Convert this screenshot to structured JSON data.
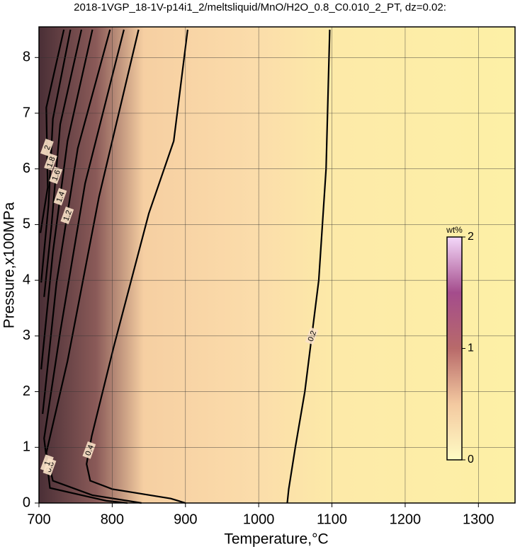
{
  "chart_data": {
    "type": "contour",
    "title": "2018-1VGP_18-1V-p14i1_2/meltsliquid/MnO/H2O_0.8_C0.010_2_PT, dz=0.02:",
    "x_label": "Temperature,°C",
    "y_label": "Pressure,x100MPa",
    "xlim": [
      700,
      1350
    ],
    "ylim": [
      0,
      8.55
    ],
    "xticks": [
      700,
      800,
      900,
      1000,
      1100,
      1200,
      1300
    ],
    "yticks": [
      0,
      1,
      2,
      3,
      4,
      5,
      6,
      7,
      8
    ],
    "grid": true,
    "line_color": "#000000",
    "colorbar": {
      "label": "wt%",
      "lim": [
        0,
        2
      ],
      "ticks": [
        0,
        1,
        2
      ],
      "colors": [
        "#fffbc4",
        "#f3c9a0",
        "#b86a6a",
        "#a44c8c",
        "#f4d8fa"
      ]
    },
    "contours": [
      {
        "level": 0.2,
        "x": [
          1039,
          1041,
          1050,
          1063,
          1082,
          1092,
          1097
        ],
        "y": [
          0,
          0.25,
          1.0,
          2,
          4,
          6,
          8.5
        ]
      },
      {
        "level": 0.4,
        "x": [
          903,
          884,
          850,
          802,
          772,
          765,
          770,
          800,
          880,
          900
        ],
        "y": [
          8.5,
          6.5,
          5.2,
          2.8,
          1.2,
          0.7,
          0.4,
          0.25,
          0.08,
          0
        ]
      },
      {
        "level": 0.8,
        "x": [
          836,
          782,
          739,
          710,
          719,
          773,
          840
        ],
        "y": [
          8.5,
          5.5,
          2.55,
          0.9,
          0.4,
          0.14,
          0
        ]
      },
      {
        "level": 1,
        "x": [
          816,
          763,
          729,
          707,
          715,
          792,
          821
        ],
        "y": [
          8.5,
          5.74,
          3.07,
          1.16,
          0.27,
          0.04,
          0
        ]
      },
      {
        "level": 1.2,
        "x": [
          797,
          753,
          724,
          705
        ],
        "y": [
          8.5,
          6.37,
          3.96,
          1.6
        ]
      },
      {
        "level": 1.4,
        "x": [
          773,
          739,
          719,
          703
        ],
        "y": [
          8.5,
          6.5,
          4.5,
          2.4
        ]
      },
      {
        "level": 1.6,
        "x": [
          758,
          729,
          717,
          707
        ],
        "y": [
          8.5,
          6.8,
          4.97,
          3.7
        ]
      },
      {
        "level": 1.8,
        "x": [
          743,
          719,
          713,
          703
        ],
        "y": [
          8.5,
          6.9,
          5.35,
          3.96
        ]
      },
      {
        "level": 2,
        "x": [
          734,
          710,
          712,
          702
        ],
        "y": [
          8.5,
          7.1,
          5.67,
          4.85
        ]
      }
    ]
  }
}
